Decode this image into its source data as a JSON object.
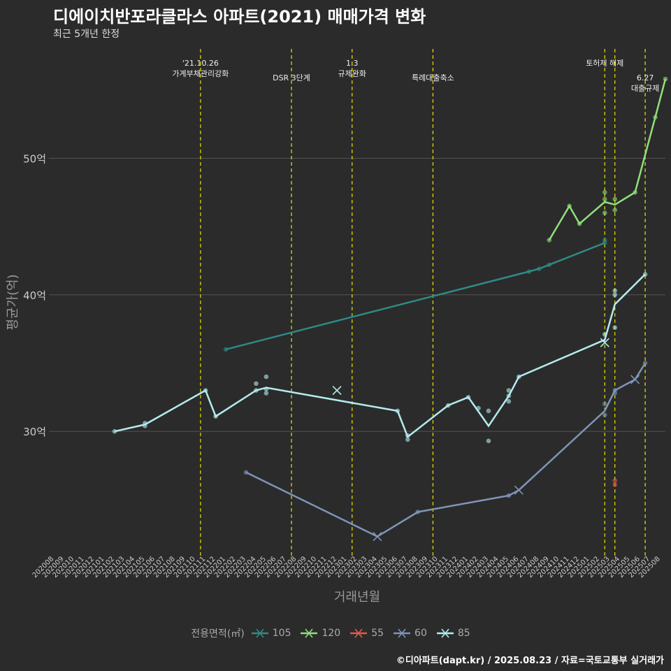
{
  "title": "디에이치반포라클라스 아파트(2021) 매매가격 변화",
  "subtitle": "최근 5개년 한정",
  "caption": "©디아파트(dapt.kr) / 2025.08.23 / 자료=국토교통부 실거래가",
  "colors": {
    "background": "#2b2b2b",
    "grid": "#555555",
    "vline": "#e6e600",
    "text": "#cccccc"
  },
  "chart_data": {
    "type": "line",
    "xlabel": "거래년월",
    "ylabel": "평균가(억)",
    "ylim": [
      20.9,
      58
    ],
    "yticks": [
      {
        "v": 30,
        "label": "30억"
      },
      {
        "v": 40,
        "label": "40억"
      },
      {
        "v": 50,
        "label": "50억"
      }
    ],
    "months": [
      "202008",
      "202009",
      "202010",
      "202011",
      "202012",
      "202101",
      "202102",
      "202103",
      "202104",
      "202105",
      "202106",
      "202107",
      "202108",
      "202109",
      "202110",
      "202111",
      "202112",
      "202201",
      "202202",
      "202203",
      "202204",
      "202205",
      "202206",
      "202207",
      "202208",
      "202209",
      "202210",
      "202211",
      "202212",
      "202301",
      "202302",
      "202303",
      "202304",
      "202305",
      "202306",
      "202307",
      "202308",
      "202309",
      "202310",
      "202311",
      "202312",
      "202401",
      "202402",
      "202403",
      "202404",
      "202405",
      "202406",
      "202407",
      "202408",
      "202409",
      "202410",
      "202411",
      "202412",
      "202501",
      "202502",
      "202503",
      "202504",
      "202505",
      "202506",
      "202507",
      "202508"
    ],
    "events": [
      {
        "x": 14.5,
        "lines": [
          "'21.10.26",
          "가계부채관리강화"
        ],
        "row": 0
      },
      {
        "x": 23.5,
        "lines": [
          "DSR 3단계"
        ],
        "row": 1
      },
      {
        "x": 29.5,
        "lines": [
          "1.3",
          "규제완화"
        ],
        "row": 0
      },
      {
        "x": 37.5,
        "lines": [
          "특례대출축소"
        ],
        "row": 1
      },
      {
        "x": 54.5,
        "lines": [
          "토허제 해제"
        ],
        "row": 0
      },
      {
        "x": 55.5,
        "lines": [],
        "row": 0
      },
      {
        "x": 58.5,
        "lines": [
          "6.27",
          "대출규제"
        ],
        "row": 1
      }
    ],
    "legend_title": "전용면적(㎡)",
    "series": [
      {
        "name": "105",
        "color": "#2e8b86",
        "line": [
          [
            17,
            36.0
          ],
          [
            47,
            41.7
          ],
          [
            48,
            41.9
          ],
          [
            49,
            42.2
          ],
          [
            54.5,
            43.8
          ]
        ],
        "points": [
          [
            17,
            36.0
          ],
          [
            47,
            41.7
          ],
          [
            48,
            41.9
          ],
          [
            49,
            42.2
          ],
          [
            54.5,
            43.8
          ],
          [
            54.5,
            44.0
          ]
        ],
        "crosses": []
      },
      {
        "name": "120",
        "color": "#90e07a",
        "line": [
          [
            49,
            44.0
          ],
          [
            51,
            46.5
          ],
          [
            52,
            45.2
          ],
          [
            54.5,
            46.8
          ],
          [
            55.5,
            46.6
          ],
          [
            57.5,
            47.5
          ],
          [
            59.5,
            53.0
          ],
          [
            60.5,
            55.8
          ]
        ],
        "points": [
          [
            49,
            44.0
          ],
          [
            51,
            46.5
          ],
          [
            52,
            45.2
          ],
          [
            54.5,
            46.0
          ],
          [
            54.5,
            47.0
          ],
          [
            54.5,
            47.5
          ],
          [
            55.5,
            46.2
          ],
          [
            55.5,
            47.0
          ],
          [
            57.5,
            47.5
          ],
          [
            59.5,
            53.0
          ],
          [
            60.5,
            55.8
          ]
        ],
        "crosses": []
      },
      {
        "name": "55",
        "color": "#e05a4f",
        "line": [],
        "points": [
          [
            55.5,
            26.1
          ],
          [
            55.5,
            26.4
          ]
        ],
        "crosses": []
      },
      {
        "name": "60",
        "color": "#7f94b8",
        "line": [
          [
            19,
            27.0
          ],
          [
            32,
            22.3
          ],
          [
            36,
            24.1
          ],
          [
            45,
            25.3
          ],
          [
            46,
            25.7
          ],
          [
            54.5,
            31.5
          ],
          [
            55.5,
            33.0
          ],
          [
            57.5,
            33.8
          ],
          [
            58.5,
            35.0
          ]
        ],
        "points": [
          [
            19,
            27.0
          ],
          [
            36,
            24.1
          ],
          [
            45,
            25.3
          ],
          [
            54.5,
            31.2
          ],
          [
            54.5,
            32.0
          ],
          [
            55.5,
            32.8
          ],
          [
            55.5,
            33.0
          ],
          [
            58.5,
            35.0
          ]
        ],
        "crosses": [
          [
            32,
            22.3
          ],
          [
            46,
            25.7
          ],
          [
            57.5,
            33.8
          ]
        ]
      },
      {
        "name": "85",
        "color": "#b4ebef",
        "line": [
          [
            6,
            30.0
          ],
          [
            9,
            30.5
          ],
          [
            15,
            33.0
          ],
          [
            16,
            31.1
          ],
          [
            20,
            33.0
          ],
          [
            21,
            33.2
          ],
          [
            34,
            31.5
          ],
          [
            35,
            29.6
          ],
          [
            39,
            31.9
          ],
          [
            41,
            32.5
          ],
          [
            43,
            30.4
          ],
          [
            45,
            32.6
          ],
          [
            46,
            34.0
          ],
          [
            54.5,
            36.7
          ],
          [
            55.5,
            39.3
          ],
          [
            58.5,
            41.5
          ]
        ],
        "points": [
          [
            6,
            30.0
          ],
          [
            9,
            30.4
          ],
          [
            9,
            30.6
          ],
          [
            15,
            33.0
          ],
          [
            16,
            31.1
          ],
          [
            20,
            33.0
          ],
          [
            20,
            33.5
          ],
          [
            21,
            32.8
          ],
          [
            21,
            33.1
          ],
          [
            21,
            34.0
          ],
          [
            34,
            31.5
          ],
          [
            35,
            29.4
          ],
          [
            35,
            29.7
          ],
          [
            39,
            31.9
          ],
          [
            41,
            32.5
          ],
          [
            42,
            31.7
          ],
          [
            43,
            31.5
          ],
          [
            43,
            29.3
          ],
          [
            45,
            32.2
          ],
          [
            45,
            32.6
          ],
          [
            45,
            33.0
          ],
          [
            46,
            34.0
          ],
          [
            54.5,
            37.1
          ],
          [
            55.5,
            37.6
          ],
          [
            55.5,
            40.0
          ],
          [
            55.5,
            40.3
          ],
          [
            58.5,
            41.5
          ]
        ],
        "crosses": [
          [
            28,
            33.0
          ],
          [
            54.5,
            36.5
          ]
        ]
      }
    ]
  }
}
